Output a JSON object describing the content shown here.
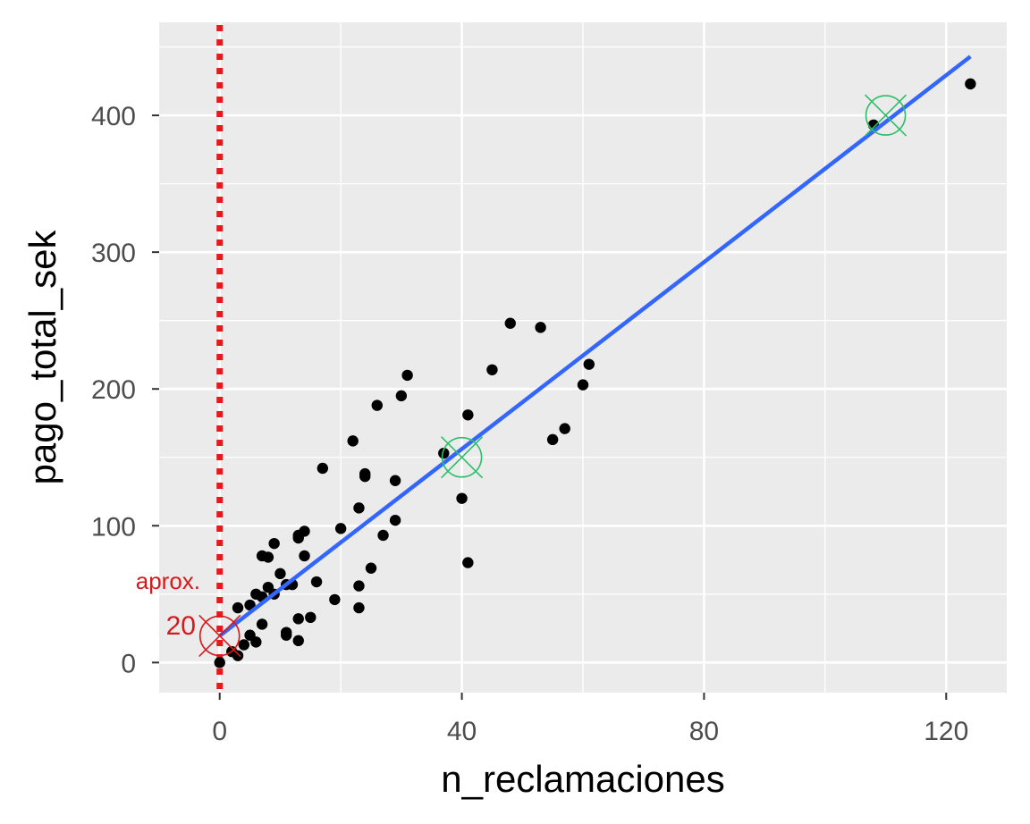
{
  "chart_data": {
    "type": "scatter",
    "title": "",
    "xlabel": "n_reclamaciones",
    "ylabel": "pago_total_sek",
    "xlim": [
      -10,
      130
    ],
    "ylim": [
      -22,
      468
    ],
    "x_ticks": [
      0,
      40,
      80,
      120
    ],
    "y_ticks": [
      0,
      100,
      200,
      300,
      400
    ],
    "x_tick_labels": [
      "0",
      "40",
      "80",
      "120"
    ],
    "y_tick_labels": [
      "0",
      "100",
      "200",
      "300",
      "400"
    ],
    "grid": true,
    "background": "#ebebeb",
    "points": [
      {
        "x": 0,
        "y": 0
      },
      {
        "x": 2,
        "y": 8
      },
      {
        "x": 3,
        "y": 5
      },
      {
        "x": 4,
        "y": 13
      },
      {
        "x": 5,
        "y": 20
      },
      {
        "x": 6,
        "y": 15
      },
      {
        "x": 7,
        "y": 28
      },
      {
        "x": 3,
        "y": 40
      },
      {
        "x": 5,
        "y": 42
      },
      {
        "x": 6,
        "y": 50
      },
      {
        "x": 7,
        "y": 48
      },
      {
        "x": 8,
        "y": 55
      },
      {
        "x": 9,
        "y": 50
      },
      {
        "x": 10,
        "y": 65
      },
      {
        "x": 11,
        "y": 57
      },
      {
        "x": 7,
        "y": 78
      },
      {
        "x": 8,
        "y": 77
      },
      {
        "x": 9,
        "y": 87
      },
      {
        "x": 11,
        "y": 22
      },
      {
        "x": 11,
        "y": 20
      },
      {
        "x": 13,
        "y": 32
      },
      {
        "x": 13,
        "y": 16
      },
      {
        "x": 12,
        "y": 57
      },
      {
        "x": 13,
        "y": 91
      },
      {
        "x": 13,
        "y": 93
      },
      {
        "x": 14,
        "y": 96
      },
      {
        "x": 14,
        "y": 78
      },
      {
        "x": 15,
        "y": 33
      },
      {
        "x": 16,
        "y": 59
      },
      {
        "x": 17,
        "y": 142
      },
      {
        "x": 19,
        "y": 46
      },
      {
        "x": 20,
        "y": 98
      },
      {
        "x": 22,
        "y": 162
      },
      {
        "x": 23,
        "y": 113
      },
      {
        "x": 23,
        "y": 56
      },
      {
        "x": 23,
        "y": 40
      },
      {
        "x": 24,
        "y": 138
      },
      {
        "x": 24,
        "y": 136
      },
      {
        "x": 25,
        "y": 69
      },
      {
        "x": 26,
        "y": 188
      },
      {
        "x": 27,
        "y": 93
      },
      {
        "x": 29,
        "y": 104
      },
      {
        "x": 29,
        "y": 133
      },
      {
        "x": 30,
        "y": 195
      },
      {
        "x": 31,
        "y": 210
      },
      {
        "x": 37,
        "y": 153
      },
      {
        "x": 40,
        "y": 120
      },
      {
        "x": 41,
        "y": 181
      },
      {
        "x": 41,
        "y": 73
      },
      {
        "x": 45,
        "y": 214
      },
      {
        "x": 48,
        "y": 248
      },
      {
        "x": 53,
        "y": 245
      },
      {
        "x": 55,
        "y": 163
      },
      {
        "x": 57,
        "y": 171
      },
      {
        "x": 60,
        "y": 203
      },
      {
        "x": 61,
        "y": 218
      },
      {
        "x": 108,
        "y": 393
      },
      {
        "x": 124,
        "y": 423
      }
    ],
    "regression_line": {
      "x": [
        0,
        124
      ],
      "y": [
        19.5,
        443
      ],
      "color": "#3366ff"
    },
    "vline": {
      "x": 0,
      "color": "#e41a1c",
      "style": "dotted"
    },
    "highlight_markers": [
      {
        "x": 0,
        "y": 19.5,
        "color": "#d7191c"
      },
      {
        "x": 40,
        "y": 150,
        "color": "#2bbf6a"
      },
      {
        "x": 110,
        "y": 400,
        "color": "#2bbf6a"
      }
    ],
    "annotation": {
      "line1": "aprox.",
      "line2": "20",
      "color": "#d7191c"
    }
  }
}
